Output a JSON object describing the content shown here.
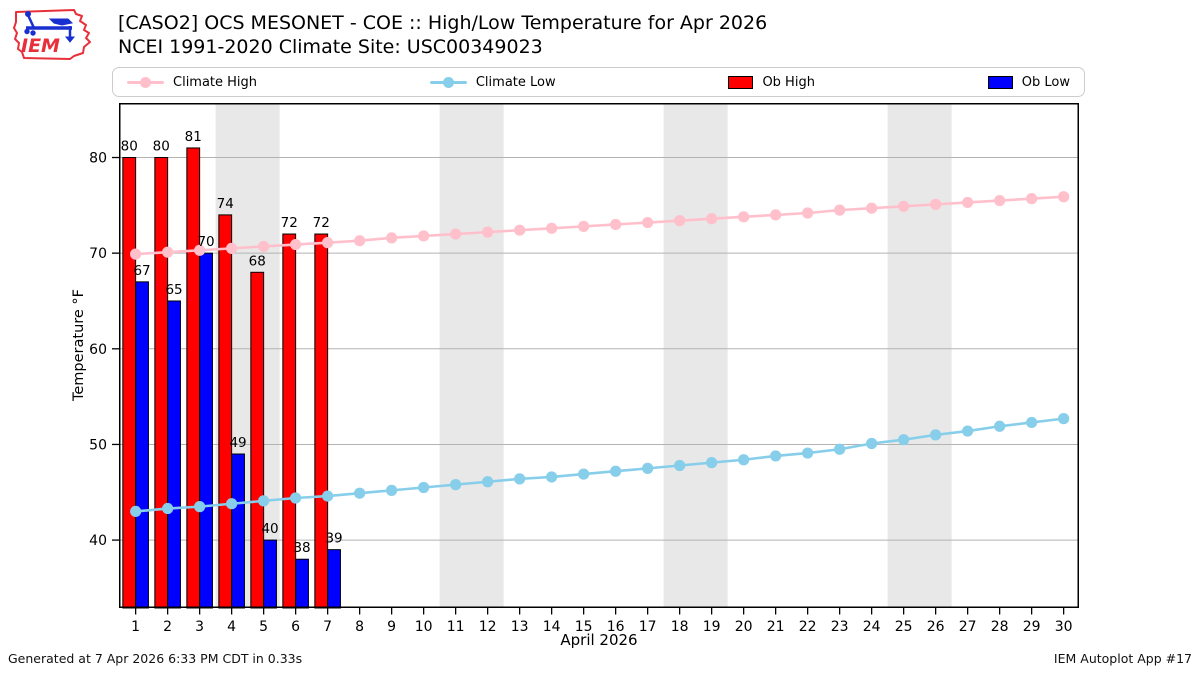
{
  "header": {
    "title": "[CASO2] OCS MESONET - COE :: High/Low Temperature for Apr 2026",
    "subtitle": "NCEI 1991-2020 Climate Site: USC00349023",
    "logo_text": "IEM"
  },
  "legend": {
    "items": [
      {
        "label": "Climate High",
        "type": "line",
        "color": "#ffc0cb"
      },
      {
        "label": "Climate Low",
        "type": "line",
        "color": "#87ceeb"
      },
      {
        "label": "Ob High",
        "type": "patch",
        "color": "#ff0000"
      },
      {
        "label": "Ob Low",
        "type": "patch",
        "color": "#0000ff"
      }
    ]
  },
  "footer": {
    "left": "Generated at 7 Apr 2026 6:33 PM CDT in 0.33s",
    "right": "IEM Autoplot App #17"
  },
  "colors": {
    "ob_high": "#ff0000",
    "ob_low": "#0000ff",
    "climate_high": "#ffc0cb",
    "climate_low": "#87ceeb",
    "weekend_band": "#e8e8e8",
    "grid": "#b3b3b3",
    "axis": "#000000",
    "label_text": "#000000"
  },
  "chart_data": {
    "type": "bar",
    "title": "[CASO2] OCS MESONET - COE :: High/Low Temperature for Apr 2026",
    "subtitle": "NCEI 1991-2020 Climate Site: USC00349023",
    "xlabel": "April 2026",
    "ylabel": "Temperature °F",
    "xlim": [
      0.48,
      30.48
    ],
    "ylim": [
      32.9,
      85.7
    ],
    "yticks": [
      40,
      50,
      60,
      70,
      80
    ],
    "x": [
      1,
      2,
      3,
      4,
      5,
      6,
      7,
      8,
      9,
      10,
      11,
      12,
      13,
      14,
      15,
      16,
      17,
      18,
      19,
      20,
      21,
      22,
      23,
      24,
      25,
      26,
      27,
      28,
      29,
      30
    ],
    "grid": "horizontal",
    "legend_position": "top",
    "weekend_bands": [
      [
        3.5,
        5.5
      ],
      [
        10.5,
        12.5
      ],
      [
        17.5,
        19.5
      ],
      [
        24.5,
        26.5
      ]
    ],
    "series": [
      {
        "name": "Climate High",
        "type": "line",
        "values": [
          69.9,
          70.1,
          70.3,
          70.5,
          70.7,
          70.9,
          71.1,
          71.3,
          71.6,
          71.8,
          72.0,
          72.2,
          72.4,
          72.6,
          72.8,
          73.0,
          73.2,
          73.4,
          73.6,
          73.8,
          74.0,
          74.2,
          74.5,
          74.7,
          74.9,
          75.1,
          75.3,
          75.5,
          75.7,
          75.9
        ]
      },
      {
        "name": "Climate Low",
        "type": "line",
        "values": [
          43.0,
          43.3,
          43.5,
          43.8,
          44.1,
          44.4,
          44.6,
          44.9,
          45.2,
          45.5,
          45.8,
          46.1,
          46.4,
          46.6,
          46.9,
          47.2,
          47.5,
          47.8,
          48.1,
          48.4,
          48.8,
          49.1,
          49.5,
          50.1,
          50.5,
          51.0,
          51.4,
          51.9,
          52.3,
          52.7
        ]
      },
      {
        "name": "Ob High",
        "type": "bar",
        "days": [
          1,
          2,
          3,
          4,
          5,
          6,
          7
        ],
        "values": [
          80,
          80,
          81,
          74,
          68,
          72,
          72
        ],
        "labels": [
          "80",
          "80",
          "81",
          "74",
          "68",
          "72",
          "72"
        ]
      },
      {
        "name": "Ob Low",
        "type": "bar",
        "days": [
          1,
          2,
          3,
          4,
          5,
          6,
          7
        ],
        "values": [
          67,
          65,
          70,
          49,
          40,
          38,
          39
        ],
        "labels": [
          "67",
          "65",
          "70",
          "49",
          "40",
          "38",
          "39"
        ]
      }
    ]
  }
}
